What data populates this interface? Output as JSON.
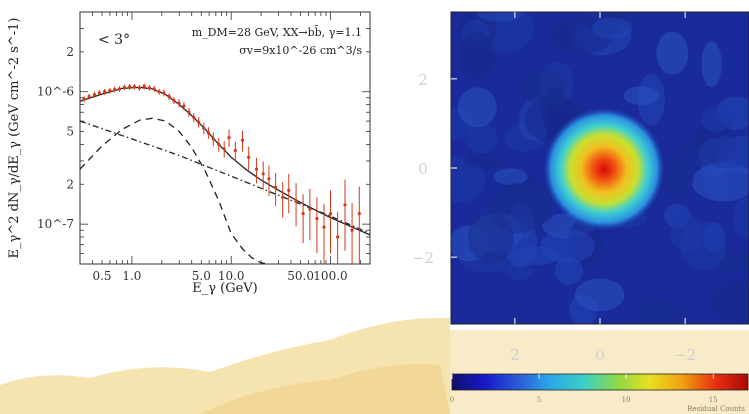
{
  "chart_data": [
    {
      "type": "line",
      "region_label": "< 3°",
      "annotation_line1": "m_DM=28 GeV, XX→bb̄, γ=1.1",
      "annotation_line2": "σv=9x10^-26 cm^3/s",
      "xlabel": "E_γ (GeV)",
      "ylabel": "E_γ^2 dN_γ/dE_γ (GeV cm^-2 s^-1)",
      "xscale": "log",
      "yscale": "log",
      "xlim": [
        0.3,
        250
      ],
      "ylim": [
        5e-08,
        4e-06
      ],
      "x_ticks": [
        "0.5",
        "1.0",
        "5.0",
        "10.0",
        "50.0",
        "100.0"
      ],
      "x_tick_values": [
        0.5,
        1.0,
        5.0,
        10.0,
        50.0,
        100.0
      ],
      "y_ticks": [
        "2",
        "10^-6",
        "5",
        "2",
        "10^-7"
      ],
      "y_tick_values": [
        2e-06,
        1e-06,
        5e-07,
        2e-07,
        1e-07
      ],
      "series": [
        {
          "style": "solid",
          "color": "#222222",
          "x": [
            0.3,
            0.5,
            0.8,
            1.2,
            1.6,
            2.2,
            3.0,
            4.0,
            5.5,
            7.5,
            10,
            14,
            20,
            30,
            45,
            70,
            100,
            150,
            250
          ],
          "y": [
            8.5e-07,
            9.6e-07,
            1.06e-06,
            1.08e-06,
            1.05e-06,
            9.5e-07,
            8e-07,
            6.6e-07,
            5.2e-07,
            4e-07,
            3.2e-07,
            2.6e-07,
            2.15e-07,
            1.8e-07,
            1.52e-07,
            1.28e-07,
            1.12e-07,
            9.8e-08,
            8.3e-08
          ]
        },
        {
          "style": "dashed",
          "color": "#222222",
          "x": [
            0.3,
            0.5,
            0.8,
            1.2,
            1.6,
            2.2,
            3.0,
            4.0,
            5.5,
            7.5,
            10,
            13,
            16,
            20,
            24
          ],
          "y": [
            2.6e-07,
            3.9e-07,
            5.2e-07,
            6.1e-07,
            6.3e-07,
            6e-07,
            5e-07,
            3.8e-07,
            2.5e-07,
            1.5e-07,
            8.5e-08,
            6.5e-08,
            5.6e-08,
            5.1e-08,
            5e-08
          ]
        },
        {
          "style": "dash-dot",
          "color": "#222222",
          "x": [
            0.3,
            1.0,
            3.0,
            10,
            30,
            100,
            250
          ],
          "y": [
            6e-07,
            4.4e-07,
            3.3e-07,
            2.3e-07,
            1.65e-07,
            1.15e-07,
            8.5e-08
          ]
        }
      ],
      "data_points": {
        "color": "#d33a1a",
        "x": [
          0.33,
          0.37,
          0.42,
          0.47,
          0.53,
          0.6,
          0.67,
          0.75,
          0.84,
          0.95,
          1.06,
          1.19,
          1.33,
          1.5,
          1.68,
          1.88,
          2.1,
          2.37,
          2.65,
          2.98,
          3.34,
          3.75,
          4.2,
          4.7,
          5.3,
          5.9,
          6.6,
          7.5,
          8.5,
          9.5,
          11,
          13,
          15,
          18,
          21,
          24,
          28,
          33,
          38,
          45,
          53,
          62,
          73,
          86,
          100,
          118,
          140,
          165,
          195
        ],
        "y": [
          8.8e-07,
          9.2e-07,
          9.5e-07,
          9.8e-07,
          1e-06,
          1.02e-06,
          1.04e-06,
          1.05e-06,
          1.08e-06,
          1.09e-06,
          1.09e-06,
          1.07e-06,
          1.1e-06,
          1.07e-06,
          1.05e-06,
          1e-06,
          9.8e-07,
          9.2e-07,
          8.6e-07,
          8.2e-07,
          7.8e-07,
          7e-07,
          6.4e-07,
          5.9e-07,
          5.3e-07,
          4.9e-07,
          4.4e-07,
          4e-07,
          3.7e-07,
          4.5e-07,
          3.6e-07,
          4.3e-07,
          3.2e-07,
          2.6e-07,
          2.4e-07,
          2.2e-07,
          1.9e-07,
          1.6e-07,
          1.8e-07,
          1.5e-07,
          1.2e-07,
          1.3e-07,
          1.1e-07,
          9.5e-08,
          1.2e-07,
          8e-08,
          1.4e-07,
          9e-08,
          1.2e-07
        ],
        "err_frac": [
          0.05,
          0.05,
          0.05,
          0.05,
          0.05,
          0.05,
          0.05,
          0.05,
          0.05,
          0.05,
          0.05,
          0.05,
          0.05,
          0.05,
          0.05,
          0.05,
          0.06,
          0.06,
          0.06,
          0.07,
          0.07,
          0.08,
          0.08,
          0.09,
          0.1,
          0.1,
          0.12,
          0.12,
          0.14,
          0.15,
          0.16,
          0.18,
          0.2,
          0.22,
          0.24,
          0.26,
          0.28,
          0.3,
          0.33,
          0.36,
          0.4,
          0.42,
          0.45,
          0.5,
          0.5,
          0.55,
          0.55,
          0.6,
          0.6
        ]
      }
    },
    {
      "type": "heatmap",
      "x_ticks": [
        "2",
        "0",
        "−2"
      ],
      "x_tick_values": [
        2,
        0,
        -2
      ],
      "y_ticks": [
        "2",
        "0",
        "−2"
      ],
      "y_tick_values": [
        2,
        0,
        -2
      ],
      "xlim": [
        3.5,
        -3.5
      ],
      "ylim": [
        -3.5,
        3.5
      ],
      "colorbar": {
        "ticks": [
          "0",
          "5",
          "10",
          "15"
        ],
        "tick_values": [
          0,
          5,
          10,
          15
        ],
        "range": [
          0,
          17
        ],
        "label": "Residual Counts",
        "colors": [
          "#10106a",
          "#1818c8",
          "#2a5ad8",
          "#2aa8e8",
          "#3ad0c8",
          "#8ad848",
          "#e8e020",
          "#f0a010",
          "#e83010",
          "#a80808"
        ]
      },
      "background_level": 2.0,
      "peak_level": 16.0
    }
  ]
}
